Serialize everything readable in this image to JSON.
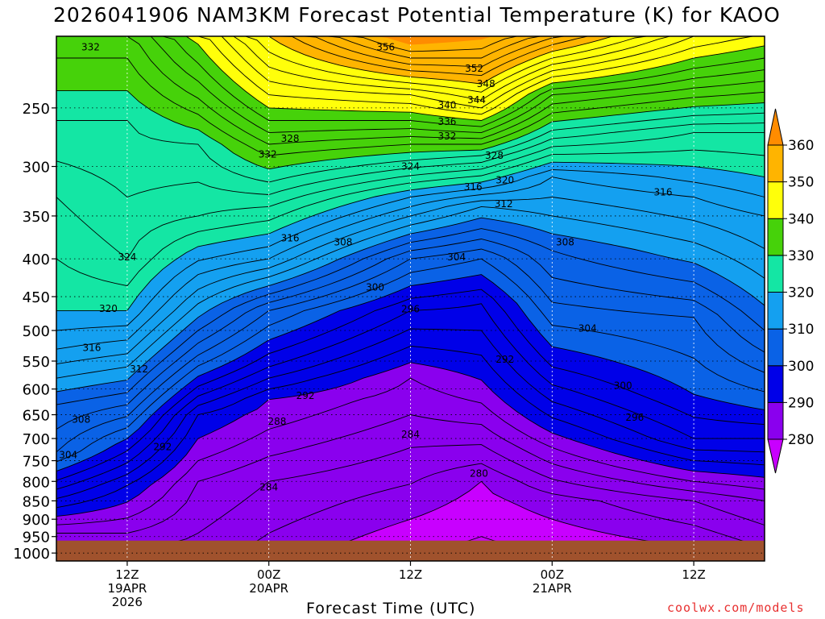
{
  "chart_data": {
    "type": "heatmap",
    "title": "2026041906 NAM3KM Forecast Potential Temperature (K) for KAOO",
    "xlabel": "Forecast Time (UTC)",
    "ylabel": "",
    "y_ticks": [
      250,
      300,
      350,
      400,
      450,
      500,
      550,
      600,
      650,
      700,
      750,
      800,
      850,
      900,
      950,
      1000
    ],
    "y_range": [
      200,
      1025
    ],
    "y_scale": "log",
    "x_range_hours": [
      6,
      66
    ],
    "x_ticks": [
      {
        "hour": 12,
        "lines": [
          "12Z",
          "19APR",
          "2026"
        ]
      },
      {
        "hour": 24,
        "lines": [
          "00Z",
          "20APR"
        ]
      },
      {
        "hour": 36,
        "lines": [
          "12Z"
        ]
      },
      {
        "hour": 48,
        "lines": [
          "00Z",
          "21APR"
        ]
      },
      {
        "hour": 60,
        "lines": [
          "12Z"
        ]
      }
    ],
    "colorbar": {
      "levels": [
        280,
        290,
        300,
        310,
        320,
        330,
        340,
        350,
        360
      ],
      "colors": [
        "#c800ff",
        "#8a00ee",
        "#0000e8",
        "#0a62e6",
        "#14a0f0",
        "#14e6a4",
        "#46d20a",
        "#ffff0a",
        "#ffb400",
        "#ff8c00"
      ],
      "extend": "both"
    },
    "contour_interval": 2,
    "profiles": [
      {
        "hour": 6,
        "values": [
          {
            "p": 214,
            "theta": 332
          },
          {
            "p": 260,
            "theta": 328
          },
          {
            "p": 330,
            "theta": 324
          },
          {
            "p": 470,
            "theta": 320
          },
          {
            "p": 530,
            "theta": 316
          },
          {
            "p": 630,
            "theta": 308
          },
          {
            "p": 730,
            "theta": 304
          },
          {
            "p": 820,
            "theta": 296
          },
          {
            "p": 940,
            "theta": 286
          }
        ]
      },
      {
        "hour": 12,
        "values": [
          {
            "p": 214,
            "theta": 332
          },
          {
            "p": 260,
            "theta": 328
          },
          {
            "p": 400,
            "theta": 324
          },
          {
            "p": 470,
            "theta": 320
          },
          {
            "p": 560,
            "theta": 312
          },
          {
            "p": 700,
            "theta": 300
          },
          {
            "p": 810,
            "theta": 292
          },
          {
            "p": 940,
            "theta": 286
          }
        ]
      },
      {
        "hour": 18,
        "values": [
          {
            "p": 230,
            "theta": 336
          },
          {
            "p": 280,
            "theta": 328
          },
          {
            "p": 350,
            "theta": 324
          },
          {
            "p": 420,
            "theta": 316
          },
          {
            "p": 540,
            "theta": 304
          },
          {
            "p": 650,
            "theta": 292
          },
          {
            "p": 800,
            "theta": 286
          },
          {
            "p": 940,
            "theta": 284
          }
        ]
      },
      {
        "hour": 24,
        "values": [
          {
            "p": 250,
            "theta": 340
          },
          {
            "p": 290,
            "theta": 332
          },
          {
            "p": 340,
            "theta": 324
          },
          {
            "p": 400,
            "theta": 316
          },
          {
            "p": 470,
            "theta": 304
          },
          {
            "p": 560,
            "theta": 296
          },
          {
            "p": 620,
            "theta": 290
          },
          {
            "p": 800,
            "theta": 284
          },
          {
            "p": 940,
            "theta": 282
          }
        ]
      },
      {
        "hour": 36,
        "values": [
          {
            "p": 214,
            "theta": 356
          },
          {
            "p": 240,
            "theta": 344
          },
          {
            "p": 280,
            "theta": 332
          },
          {
            "p": 330,
            "theta": 318
          },
          {
            "p": 400,
            "theta": 304
          },
          {
            "p": 470,
            "theta": 296
          },
          {
            "p": 580,
            "theta": 288
          },
          {
            "p": 720,
            "theta": 284
          },
          {
            "p": 850,
            "theta": 281
          },
          {
            "p": 950,
            "theta": 279
          }
        ]
      },
      {
        "hour": 42,
        "values": [
          {
            "p": 214,
            "theta": 356
          },
          {
            "p": 250,
            "theta": 344
          },
          {
            "p": 290,
            "theta": 328
          },
          {
            "p": 340,
            "theta": 312
          },
          {
            "p": 400,
            "theta": 302
          },
          {
            "p": 460,
            "theta": 296
          },
          {
            "p": 540,
            "theta": 292
          },
          {
            "p": 800,
            "theta": 280
          },
          {
            "p": 950,
            "theta": 278
          }
        ]
      },
      {
        "hour": 48,
        "values": [
          {
            "p": 214,
            "theta": 348
          },
          {
            "p": 240,
            "theta": 336
          },
          {
            "p": 310,
            "theta": 316
          },
          {
            "p": 390,
            "theta": 308
          },
          {
            "p": 560,
            "theta": 298
          },
          {
            "p": 720,
            "theta": 288
          },
          {
            "p": 850,
            "theta": 281
          },
          {
            "p": 950,
            "theta": 279
          }
        ]
      },
      {
        "hour": 60,
        "values": [
          {
            "p": 214,
            "theta": 340
          },
          {
            "p": 270,
            "theta": 324
          },
          {
            "p": 330,
            "theta": 316
          },
          {
            "p": 480,
            "theta": 304
          },
          {
            "p": 610,
            "theta": 300
          },
          {
            "p": 700,
            "theta": 296
          },
          {
            "p": 850,
            "theta": 284
          },
          {
            "p": 950,
            "theta": 281
          }
        ]
      },
      {
        "hour": 66,
        "values": [
          {
            "p": 214,
            "theta": 338
          },
          {
            "p": 270,
            "theta": 324
          },
          {
            "p": 350,
            "theta": 316
          },
          {
            "p": 500,
            "theta": 308
          },
          {
            "p": 640,
            "theta": 300
          },
          {
            "p": 760,
            "theta": 292
          },
          {
            "p": 850,
            "theta": 286
          },
          {
            "p": 950,
            "theta": 283
          }
        ]
      }
    ],
    "contour_labels": [
      {
        "hour": 8.9,
        "p": 207,
        "text": "332"
      },
      {
        "hour": 33.9,
        "p": 207,
        "text": "356"
      },
      {
        "hour": 41.4,
        "p": 221,
        "text": "352"
      },
      {
        "hour": 42.4,
        "p": 232,
        "text": "348"
      },
      {
        "hour": 41.6,
        "p": 244,
        "text": "344"
      },
      {
        "hour": 39.1,
        "p": 248,
        "text": "340"
      },
      {
        "hour": 39.1,
        "p": 261,
        "text": "336"
      },
      {
        "hour": 39.1,
        "p": 273,
        "text": "332"
      },
      {
        "hour": 25.8,
        "p": 275,
        "text": "328"
      },
      {
        "hour": 23.9,
        "p": 289,
        "text": "332"
      },
      {
        "hour": 43.1,
        "p": 290,
        "text": "328"
      },
      {
        "hour": 36.0,
        "p": 300,
        "text": "324"
      },
      {
        "hour": 44.0,
        "p": 313,
        "text": "320"
      },
      {
        "hour": 41.3,
        "p": 320,
        "text": "316"
      },
      {
        "hour": 43.9,
        "p": 337,
        "text": "312"
      },
      {
        "hour": 57.4,
        "p": 325,
        "text": "316"
      },
      {
        "hour": 25.8,
        "p": 375,
        "text": "316"
      },
      {
        "hour": 30.3,
        "p": 380,
        "text": "308"
      },
      {
        "hour": 39.9,
        "p": 398,
        "text": "304"
      },
      {
        "hour": 49.1,
        "p": 380,
        "text": "308"
      },
      {
        "hour": 12.0,
        "p": 398,
        "text": "324"
      },
      {
        "hour": 10.4,
        "p": 467,
        "text": "320"
      },
      {
        "hour": 9.0,
        "p": 528,
        "text": "316"
      },
      {
        "hour": 13.0,
        "p": 564,
        "text": "312"
      },
      {
        "hour": 8.1,
        "p": 660,
        "text": "308"
      },
      {
        "hour": 7.0,
        "p": 737,
        "text": "304"
      },
      {
        "hour": 33.0,
        "p": 437,
        "text": "300"
      },
      {
        "hour": 36.0,
        "p": 468,
        "text": "296"
      },
      {
        "hour": 44.0,
        "p": 547,
        "text": "292"
      },
      {
        "hour": 51.0,
        "p": 497,
        "text": "304"
      },
      {
        "hour": 54.0,
        "p": 594,
        "text": "300"
      },
      {
        "hour": 55.0,
        "p": 656,
        "text": "296"
      },
      {
        "hour": 27.1,
        "p": 613,
        "text": "292"
      },
      {
        "hour": 24.7,
        "p": 664,
        "text": "288"
      },
      {
        "hour": 15.0,
        "p": 719,
        "text": "292"
      },
      {
        "hour": 36.0,
        "p": 691,
        "text": "284"
      },
      {
        "hour": 41.8,
        "p": 781,
        "text": "280"
      },
      {
        "hour": 24.0,
        "p": 815,
        "text": "284"
      }
    ],
    "ground_pressure": 962,
    "ground_color": "#a0522d"
  },
  "credit": "coolwx.com/models"
}
